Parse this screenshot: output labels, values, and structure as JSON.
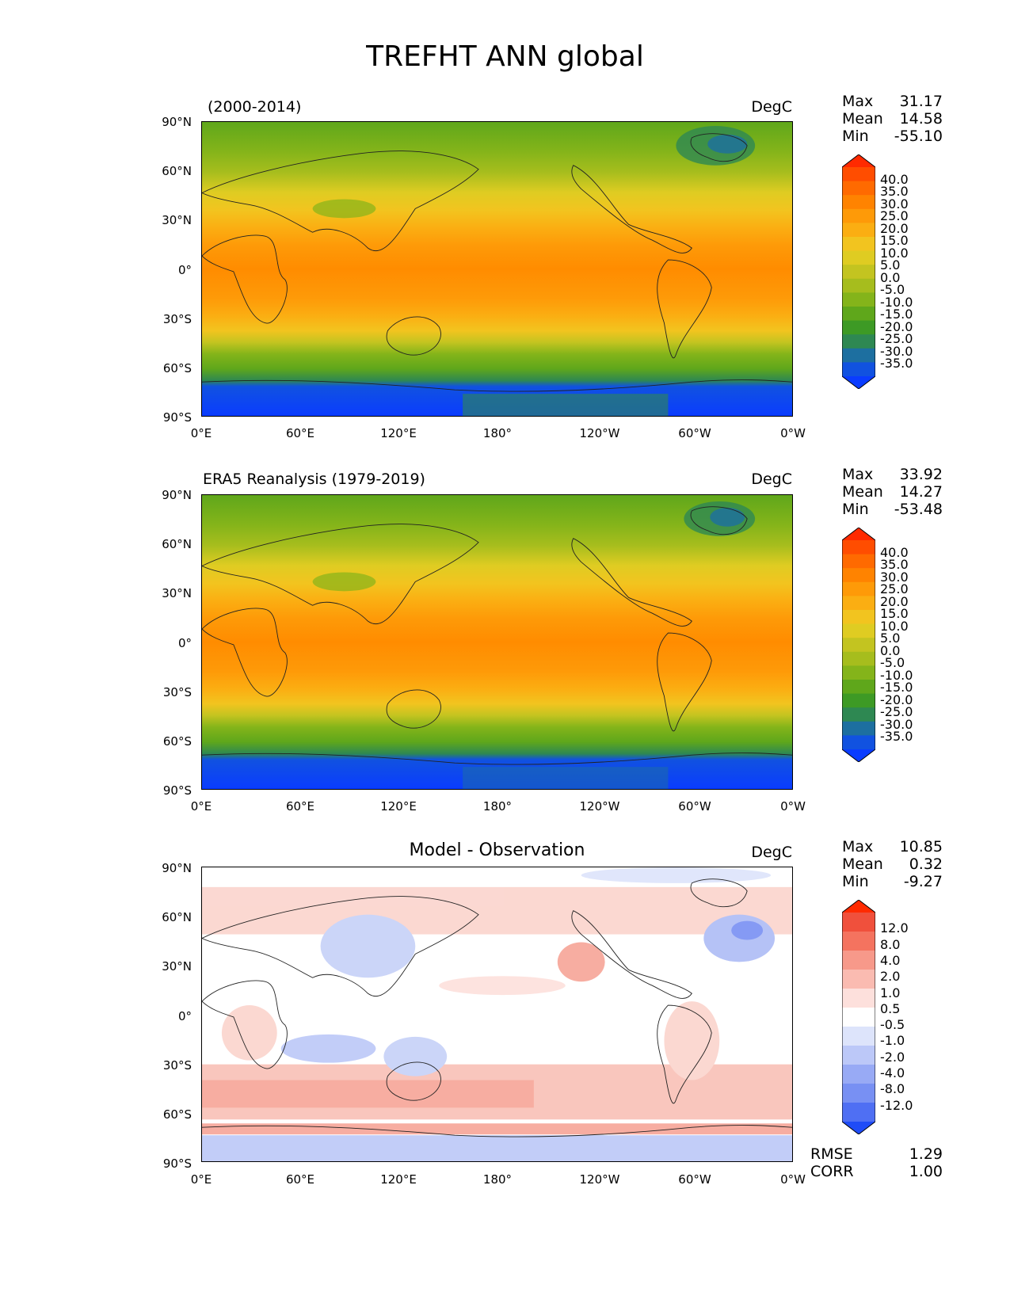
{
  "title": "TREFHT ANN global",
  "panels": [
    {
      "id": "model",
      "left_title": "(2000-2014)",
      "center_title": "",
      "units": "DegC",
      "stats": {
        "max_label": "Max",
        "max": "31.17",
        "mean_label": "Mean",
        "mean": "14.58",
        "min_label": "Min",
        "min": "-55.10"
      },
      "colorbar": {
        "labels": [
          "40.0",
          "35.0",
          "30.0",
          "25.0",
          "20.0",
          "15.0",
          "10.0",
          "5.0",
          "0.0",
          "-5.0",
          "-10.0",
          "-15.0",
          "-20.0",
          "-25.0",
          "-30.0",
          "-35.0"
        ],
        "colors": [
          "#ff2a00",
          "#ff4d00",
          "#ff6a00",
          "#ff8300",
          "#fe9a08",
          "#fbae12",
          "#f2c41f",
          "#dfcc22",
          "#c3c420",
          "#a6bd1d",
          "#84b41a",
          "#5fa71b",
          "#3d9a25",
          "#2e8852",
          "#1d6fa0",
          "#1152e0",
          "#0a3cff"
        ]
      },
      "xticks": [
        "0°E",
        "60°E",
        "120°E",
        "180°",
        "120°W",
        "60°W",
        "0°W"
      ],
      "yticks": [
        "90°N",
        "60°N",
        "30°N",
        "0°",
        "30°S",
        "60°S",
        "90°S"
      ]
    },
    {
      "id": "obs",
      "left_title": "ERA5 Reanalysis (1979-2019)",
      "center_title": "",
      "units": "DegC",
      "stats": {
        "max_label": "Max",
        "max": "33.92",
        "mean_label": "Mean",
        "mean": "14.27",
        "min_label": "Min",
        "min": "-53.48"
      },
      "colorbar": {
        "labels": [
          "40.0",
          "35.0",
          "30.0",
          "25.0",
          "20.0",
          "15.0",
          "10.0",
          "5.0",
          "0.0",
          "-5.0",
          "-10.0",
          "-15.0",
          "-20.0",
          "-25.0",
          "-30.0",
          "-35.0"
        ],
        "colors": [
          "#ff2a00",
          "#ff4d00",
          "#ff6a00",
          "#ff8300",
          "#fe9a08",
          "#fbae12",
          "#f2c41f",
          "#dfcc22",
          "#c3c420",
          "#a6bd1d",
          "#84b41a",
          "#5fa71b",
          "#3d9a25",
          "#2e8852",
          "#1d6fa0",
          "#1152e0",
          "#0a3cff"
        ]
      },
      "xticks": [
        "0°E",
        "60°E",
        "120°E",
        "180°",
        "120°W",
        "60°W",
        "0°W"
      ],
      "yticks": [
        "90°N",
        "60°N",
        "30°N",
        "0°",
        "30°S",
        "60°S",
        "90°S"
      ]
    },
    {
      "id": "diff",
      "left_title": "",
      "center_title": "Model - Observation",
      "units": "DegC",
      "stats": {
        "max_label": "Max",
        "max": "10.85",
        "mean_label": "Mean",
        "mean": "0.32",
        "min_label": "Min",
        "min": "-9.27"
      },
      "colorbar": {
        "labels": [
          "12.0",
          "8.0",
          "4.0",
          "2.0",
          "1.0",
          "0.5",
          "-0.5",
          "-1.0",
          "-2.0",
          "-4.0",
          "-8.0",
          "-12.0"
        ],
        "colors": [
          "#ff2a00",
          "#f0503c",
          "#f4735f",
          "#f7998a",
          "#fabbb1",
          "#fde0dc",
          "#ffffff",
          "#dde4fb",
          "#bcc8f8",
          "#98aaf5",
          "#7890f3",
          "#4f6ff3",
          "#1f4cf7"
        ]
      },
      "xticks": [
        "0°E",
        "60°E",
        "120°E",
        "180°",
        "120°W",
        "60°W",
        "0°W"
      ],
      "yticks": [
        "90°N",
        "60°N",
        "30°N",
        "0°",
        "30°S",
        "60°S",
        "90°S"
      ],
      "metrics": {
        "rmse_label": "RMSE",
        "rmse": "1.29",
        "corr_label": "CORR",
        "corr": "1.00"
      }
    }
  ]
}
